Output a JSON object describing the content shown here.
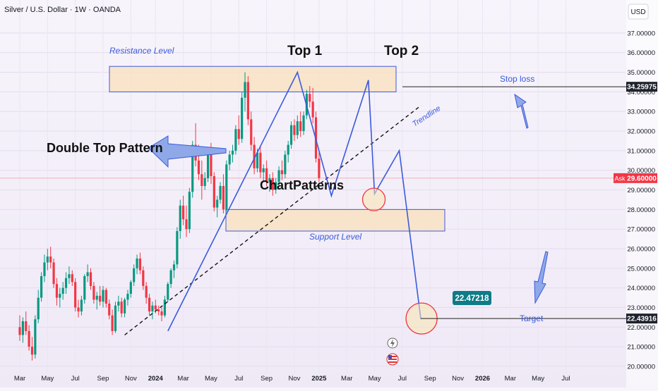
{
  "header": {
    "symbol_title": "Silver / U.S. Dollar · 1W · OANDA",
    "currency": "USD"
  },
  "annotations": {
    "resistance_label": "Resistance Level",
    "support_label": "Support Level",
    "top1": "Top 1",
    "top2": "Top 2",
    "pattern_label": "Double Top Pattern",
    "center_label": "ChartPatterns",
    "trendline_label": "Trendline",
    "stop_loss_label": "Stop loss",
    "target_label": "Target",
    "target_badge": "22.47218",
    "ask_tag": "Ask",
    "ask_value": "29.60000",
    "stop_value": "34.25975",
    "target_value": "22.43916"
  },
  "chart_data": {
    "type": "candlestick",
    "ylim": [
      20,
      37.5
    ],
    "y_ticks": [
      {
        "value": 20,
        "label": "20.00000"
      },
      {
        "value": 21,
        "label": "21.00000"
      },
      {
        "value": 22,
        "label": "22.00000"
      },
      {
        "value": 23,
        "label": "23.00000"
      },
      {
        "value": 24,
        "label": "24.00000"
      },
      {
        "value": 25,
        "label": "25.00000"
      },
      {
        "value": 26,
        "label": "26.00000"
      },
      {
        "value": 27,
        "label": "27.00000"
      },
      {
        "value": 28,
        "label": "28.00000"
      },
      {
        "value": 29,
        "label": "29.00000"
      },
      {
        "value": 30,
        "label": "30.00000"
      },
      {
        "value": 31,
        "label": "31.00000"
      },
      {
        "value": 32,
        "label": "32.00000"
      },
      {
        "value": 33,
        "label": "33.00000"
      },
      {
        "value": 34,
        "label": "34.00000"
      },
      {
        "value": 35,
        "label": "35.00000"
      },
      {
        "value": 36,
        "label": "36.00000"
      },
      {
        "value": 37,
        "label": "37.00000"
      }
    ],
    "x_ticks": [
      {
        "t": 0,
        "label": "Mar",
        "bold": false
      },
      {
        "t": 9,
        "label": "May",
        "bold": false
      },
      {
        "t": 18,
        "label": "Jul",
        "bold": false
      },
      {
        "t": 27,
        "label": "Sep",
        "bold": false
      },
      {
        "t": 36,
        "label": "Nov",
        "bold": false
      },
      {
        "t": 44,
        "label": "2024",
        "bold": true
      },
      {
        "t": 53,
        "label": "Mar",
        "bold": false
      },
      {
        "t": 62,
        "label": "May",
        "bold": false
      },
      {
        "t": 71,
        "label": "Jul",
        "bold": false
      },
      {
        "t": 80,
        "label": "Sep",
        "bold": false
      },
      {
        "t": 89,
        "label": "Nov",
        "bold": false
      },
      {
        "t": 97,
        "label": "2025",
        "bold": true
      },
      {
        "t": 106,
        "label": "Mar",
        "bold": false
      },
      {
        "t": 115,
        "label": "May",
        "bold": false
      },
      {
        "t": 124,
        "label": "Jul",
        "bold": false
      },
      {
        "t": 133,
        "label": "Sep",
        "bold": false
      },
      {
        "t": 142,
        "label": "Nov",
        "bold": false
      },
      {
        "t": 150,
        "label": "2026",
        "bold": true
      },
      {
        "t": 159,
        "label": "Mar",
        "bold": false
      },
      {
        "t": 168,
        "label": "May",
        "bold": false
      },
      {
        "t": 177,
        "label": "Jul",
        "bold": false
      }
    ],
    "candles": [
      [
        22.0,
        22.6,
        21.3,
        21.6
      ],
      [
        21.6,
        22.5,
        21.2,
        22.3
      ],
      [
        22.3,
        22.8,
        21.6,
        21.8
      ],
      [
        21.8,
        22.1,
        20.8,
        21.0
      ],
      [
        21.0,
        21.5,
        20.3,
        20.6
      ],
      [
        20.6,
        22.6,
        20.4,
        22.4
      ],
      [
        22.4,
        23.9,
        22.2,
        23.5
      ],
      [
        23.5,
        24.8,
        23.3,
        24.6
      ],
      [
        24.6,
        25.7,
        24.3,
        25.3
      ],
      [
        25.3,
        26.0,
        24.9,
        25.6
      ],
      [
        25.6,
        26.1,
        25.0,
        25.3
      ],
      [
        25.3,
        25.5,
        24.0,
        24.2
      ],
      [
        24.2,
        24.5,
        23.1,
        23.5
      ],
      [
        23.5,
        24.0,
        23.0,
        23.7
      ],
      [
        23.7,
        24.3,
        23.4,
        24.0
      ],
      [
        24.0,
        24.8,
        23.7,
        24.5
      ],
      [
        24.5,
        25.1,
        24.2,
        24.7
      ],
      [
        24.7,
        24.9,
        24.1,
        24.3
      ],
      [
        24.3,
        24.5,
        22.8,
        23.0
      ],
      [
        23.0,
        23.4,
        22.5,
        22.8
      ],
      [
        22.8,
        23.6,
        22.6,
        23.4
      ],
      [
        23.4,
        24.7,
        23.2,
        24.6
      ],
      [
        24.6,
        25.2,
        24.3,
        24.8
      ],
      [
        24.8,
        25.0,
        23.9,
        24.1
      ],
      [
        24.1,
        24.3,
        23.2,
        23.4
      ],
      [
        23.4,
        23.8,
        22.9,
        23.6
      ],
      [
        23.6,
        24.1,
        23.1,
        23.3
      ],
      [
        23.3,
        24.1,
        23.0,
        23.9
      ],
      [
        23.9,
        24.0,
        23.0,
        23.2
      ],
      [
        23.2,
        23.4,
        22.4,
        22.6
      ],
      [
        22.6,
        22.9,
        21.6,
        21.8
      ],
      [
        21.8,
        23.3,
        21.7,
        23.1
      ],
      [
        23.1,
        23.6,
        22.8,
        23.3
      ],
      [
        23.3,
        23.5,
        22.5,
        22.7
      ],
      [
        22.7,
        23.5,
        22.5,
        23.4
      ],
      [
        23.4,
        23.9,
        23.1,
        23.7
      ],
      [
        23.7,
        24.4,
        23.5,
        24.3
      ],
      [
        24.3,
        25.2,
        24.1,
        25.0
      ],
      [
        25.0,
        25.7,
        24.7,
        25.5
      ],
      [
        25.5,
        25.8,
        24.7,
        24.9
      ],
      [
        24.9,
        25.1,
        23.9,
        24.1
      ],
      [
        24.1,
        24.3,
        23.2,
        23.5
      ],
      [
        23.5,
        23.7,
        22.6,
        22.8
      ],
      [
        22.8,
        23.3,
        22.4,
        23.1
      ],
      [
        23.1,
        23.4,
        22.7,
        22.9
      ],
      [
        22.9,
        23.1,
        22.6,
        22.8
      ],
      [
        22.8,
        23.0,
        22.3,
        22.6
      ],
      [
        22.6,
        23.6,
        22.5,
        23.4
      ],
      [
        23.4,
        24.3,
        23.3,
        24.2
      ],
      [
        24.2,
        25.0,
        24.0,
        24.9
      ],
      [
        24.9,
        25.4,
        24.5,
        25.2
      ],
      [
        25.2,
        27.1,
        25.0,
        26.9
      ],
      [
        26.9,
        28.5,
        26.5,
        28.2
      ],
      [
        28.2,
        28.7,
        27.2,
        27.5
      ],
      [
        27.5,
        28.2,
        26.6,
        27.0
      ],
      [
        27.0,
        29.1,
        26.8,
        28.9
      ],
      [
        28.9,
        31.5,
        28.6,
        31.3
      ],
      [
        31.3,
        32.4,
        30.2,
        30.5
      ],
      [
        30.5,
        31.3,
        29.5,
        29.8
      ],
      [
        29.8,
        30.5,
        28.5,
        29.2
      ],
      [
        29.2,
        29.9,
        29.0,
        29.6
      ],
      [
        29.6,
        31.0,
        29.4,
        30.8
      ],
      [
        30.8,
        31.4,
        29.3,
        29.7
      ],
      [
        29.7,
        29.9,
        27.9,
        28.1
      ],
      [
        28.1,
        28.7,
        27.6,
        28.5
      ],
      [
        28.5,
        29.4,
        28.3,
        29.2
      ],
      [
        29.2,
        29.8,
        27.8,
        28.0
      ],
      [
        28.0,
        30.5,
        27.9,
        30.3
      ],
      [
        30.3,
        31.0,
        30.0,
        30.8
      ],
      [
        30.8,
        31.3,
        30.4,
        31.0
      ],
      [
        31.0,
        32.3,
        30.8,
        32.1
      ],
      [
        32.1,
        32.8,
        31.3,
        31.6
      ],
      [
        31.6,
        34.0,
        31.4,
        33.7
      ],
      [
        33.7,
        35.0,
        33.0,
        34.5
      ],
      [
        34.5,
        34.8,
        32.3,
        32.6
      ],
      [
        32.6,
        33.0,
        31.0,
        31.3
      ],
      [
        31.3,
        31.7,
        29.8,
        30.1
      ],
      [
        30.1,
        31.1,
        29.9,
        30.9
      ],
      [
        30.9,
        31.2,
        29.6,
        29.9
      ],
      [
        29.9,
        30.3,
        29.4,
        30.1
      ],
      [
        30.1,
        30.5,
        29.2,
        29.4
      ],
      [
        29.4,
        29.8,
        28.9,
        29.6
      ],
      [
        29.6,
        29.9,
        28.7,
        29.0
      ],
      [
        29.0,
        29.6,
        28.8,
        29.4
      ],
      [
        29.4,
        30.2,
        29.2,
        30.0
      ],
      [
        30.0,
        30.5,
        29.5,
        29.8
      ],
      [
        29.8,
        31.0,
        29.6,
        30.8
      ],
      [
        30.8,
        31.5,
        30.4,
        31.3
      ],
      [
        31.3,
        32.5,
        31.1,
        32.3
      ],
      [
        32.3,
        32.6,
        31.5,
        31.8
      ],
      [
        31.8,
        32.8,
        31.6,
        32.5
      ],
      [
        32.5,
        33.0,
        31.7,
        32.0
      ],
      [
        32.0,
        33.0,
        31.8,
        32.8
      ],
      [
        32.8,
        34.1,
        32.6,
        33.9
      ],
      [
        33.9,
        34.3,
        33.2,
        33.5
      ],
      [
        33.5,
        34.2,
        32.4,
        32.7
      ],
      [
        32.7,
        33.0,
        30.4,
        30.6
      ],
      [
        30.6,
        31.0,
        29.4,
        29.6
      ]
    ],
    "candle_colors": {
      "up": "#089981",
      "down": "#f23645"
    },
    "resistance_zone": [
      34.0,
      35.3
    ],
    "support_zone": [
      26.9,
      28.0
    ],
    "trendline": {
      "from": {
        "t": 34,
        "y": 21.6
      },
      "to": {
        "t": 130,
        "y": 33.3
      }
    },
    "pattern_path": [
      {
        "t": 48,
        "y": 21.8
      },
      {
        "t": 90,
        "y": 35.0
      },
      {
        "t": 101,
        "y": 28.7
      },
      {
        "t": 113,
        "y": 34.6
      },
      {
        "t": 115,
        "y": 28.8
      },
      {
        "t": 123,
        "y": 31.0
      },
      {
        "t": 130,
        "y": 22.4
      }
    ],
    "ask_price": 29.6,
    "stop_loss": 34.25975,
    "target": 22.43916,
    "target_projection": 22.47218
  }
}
